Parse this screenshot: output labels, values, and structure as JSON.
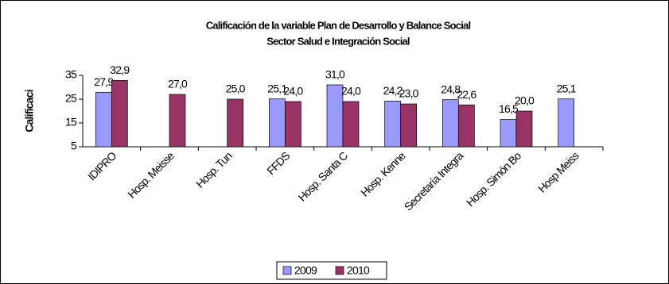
{
  "chart_data": {
    "type": "bar",
    "title": [
      "Calificación de la variable Plan de Desarrollo y Balance Social",
      "Sector Salud e Integración Social"
    ],
    "y_label": "Calificaci",
    "categories": [
      "IDIPRO",
      "Hosp. Meisse",
      "Hosp. Tun",
      "FFDS",
      "Hosp. Santa C",
      "Hosp. Kenne",
      "Secretaría Integra",
      "Hosp. Simón Bo",
      "Hosp Meiss"
    ],
    "series": [
      {
        "name": "2009",
        "color": "#9999ff",
        "values": [
          27.9,
          null,
          null,
          25.1,
          31.0,
          24.2,
          24.8,
          16.5,
          25.1
        ],
        "value_labels": [
          "27,9",
          null,
          null,
          "25,1",
          "31,0",
          "24,2",
          "24,8",
          "16,5",
          "25,1"
        ]
      },
      {
        "name": "2010",
        "color": "#993366",
        "values": [
          32.9,
          27.0,
          25.0,
          24.0,
          24.0,
          23.0,
          22.6,
          20.0,
          null
        ],
        "value_labels": [
          "32,9",
          "27,0",
          "25,0",
          "24,0",
          "24,0",
          "23,0",
          "22,6",
          "20,0",
          null
        ]
      }
    ],
    "ylim": [
      5,
      35
    ],
    "yticks": [
      5,
      15,
      25,
      35
    ],
    "legend": "bottom"
  }
}
